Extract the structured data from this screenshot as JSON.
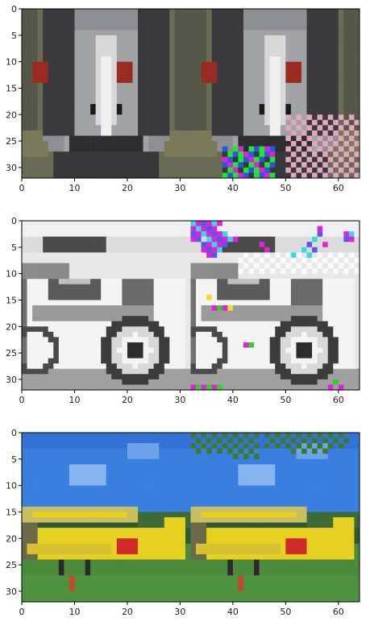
{
  "chart_data": [
    {
      "type": "heatmap",
      "subject": "emu",
      "xlim": [
        0,
        64
      ],
      "ylim": [
        32,
        0
      ],
      "xticks": [
        "0",
        "10",
        "20",
        "30",
        "40",
        "50",
        "60"
      ],
      "yticks": [
        "0",
        "5",
        "10",
        "15",
        "20",
        "25",
        "30"
      ],
      "palette": {
        "bg": "#6b6a55",
        "head": "#8d8f94",
        "dark": "#3a3a3e",
        "light": "#d8d8d8",
        "eye": "#9a2b22",
        "green": "#1ee82a",
        "blue": "#2c55e0",
        "magenta": "#e020d8",
        "check": "#e0a8c0"
      }
    },
    {
      "type": "heatmap",
      "subject": "car",
      "xlim": [
        0,
        64
      ],
      "ylim": [
        32,
        0
      ],
      "xticks": [
        "0",
        "10",
        "20",
        "30",
        "40",
        "50",
        "60"
      ],
      "yticks": [
        "0",
        "5",
        "10",
        "15",
        "20",
        "25",
        "30"
      ],
      "palette": {
        "sky": "#e8e8e8",
        "dark": "#3c3c3c",
        "mid": "#9a9a9a",
        "light": "#f4f4f4",
        "magenta": "#e021d6",
        "cyan": "#38d8e8",
        "blue": "#5858e8",
        "yellow": "#f0e020",
        "green": "#30d030"
      }
    },
    {
      "type": "heatmap",
      "subject": "airplane",
      "xlim": [
        0,
        64
      ],
      "ylim": [
        32,
        0
      ],
      "xticks": [
        "0",
        "10",
        "20",
        "30",
        "40",
        "50",
        "60"
      ],
      "yticks": [
        "0",
        "5",
        "10",
        "15",
        "20",
        "25",
        "30"
      ],
      "palette": {
        "sky": "#3a7fe0",
        "cloud": "#86b4ee",
        "grass": "#4a8a3a",
        "trees": "#2e5a32",
        "yellow": "#e8d020",
        "red": "#d02a2a",
        "dark": "#2a2a2a",
        "check": "#3a7a2a"
      }
    }
  ]
}
